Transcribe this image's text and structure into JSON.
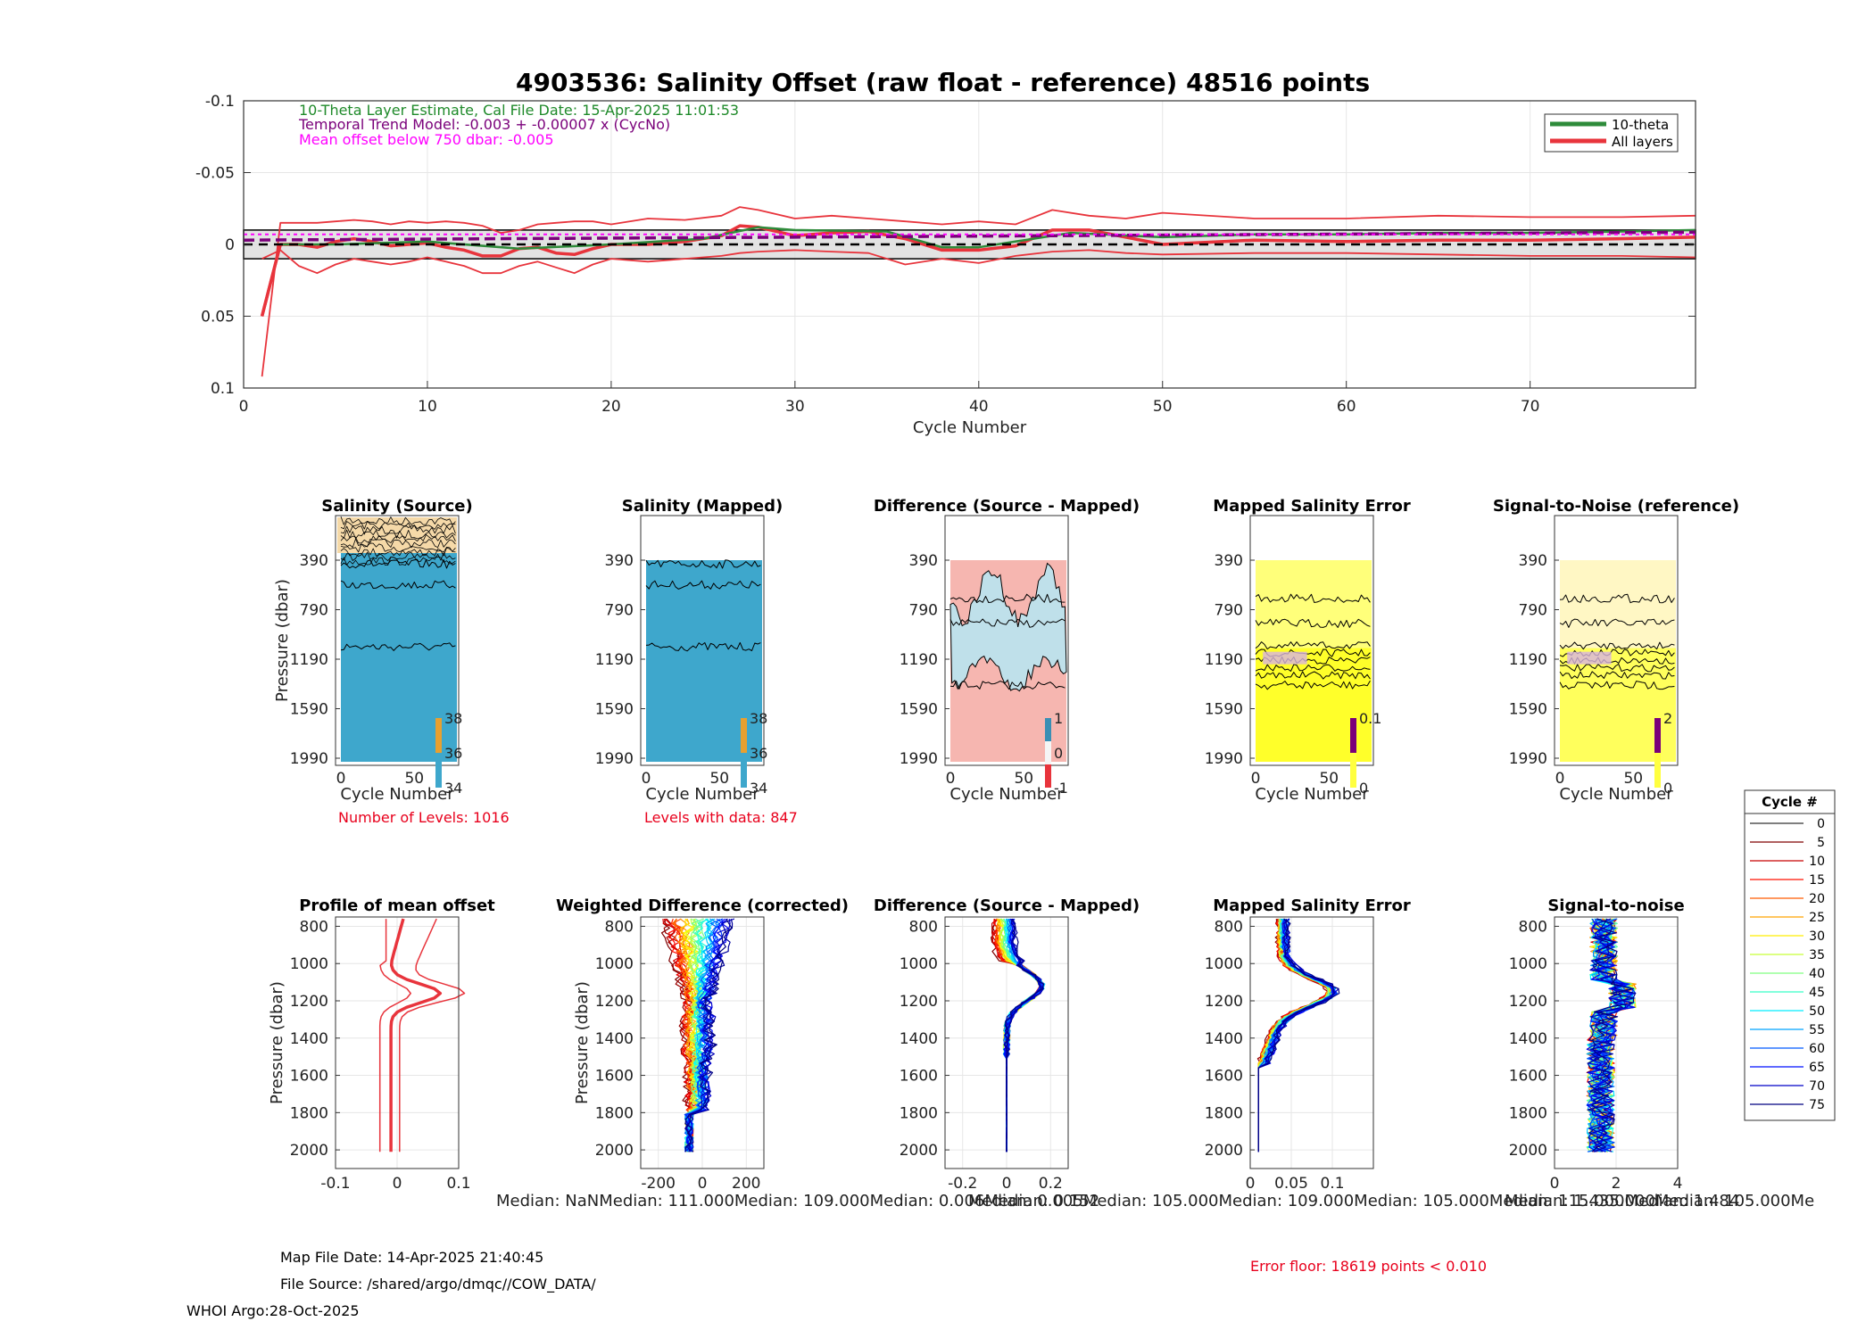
{
  "page": {
    "title": "4903536: Salinity Offset (raw float - reference)   48516 points",
    "cal_note": "10-Theta Layer Estimate, Cal File Date: 15-Apr-2025 11:01:53",
    "trend_note": "Temporal Trend Model: -0.003 + -0.00007 x (CycNo)",
    "mean_note": "Mean offset below 750 dbar: -0.005",
    "levels_note": "Number of Levels: 1016",
    "levels_data_note": "Levels with data: 847",
    "median_row": "Median:     NaNMedian: 111.000Median: 109.000Median: 0.006Median: 0.152",
    "median_row2": "Median: 0.005Median: 105.000Median: 109.000Median: 105.000Median: 115.000Median: 1.484",
    "median_row3": "Median: 1.435.000Median: 105.000Me",
    "map_file_date": "Map File Date: 14-Apr-2025 21:40:45",
    "file_source": "File Source: /shared/argo/dmqc//COW_DATA/",
    "error_floor": "Error floor: 18619 points < 0.010",
    "whoi": "WHOI Argo:28-Oct-2025"
  },
  "colors": {
    "tenTheta": "#2e8b3a",
    "allLayers": "#e8343c",
    "trend": "#7a007a",
    "mean": "#ff00ff",
    "salinityFill": "#3ea7cc",
    "diffPos": "#f6b6b0",
    "diffNeg": "#bfe0ea",
    "errorFill": "#ffff2a"
  },
  "chart_data": [
    {
      "id": "offset",
      "type": "line",
      "title": "4903536: Salinity Offset (raw float - reference)   48516 points",
      "xlabel": "Cycle Number",
      "ylabel": "",
      "xlim": [
        0,
        79
      ],
      "ylim": [
        -0.1,
        0.1
      ],
      "y_reversed": true,
      "xticks": [
        0,
        10,
        20,
        30,
        40,
        50,
        60,
        70
      ],
      "yticks": [
        -0.1,
        -0.05,
        0,
        0.05,
        0.1
      ],
      "ytick_labels": [
        "-0.1",
        "-0.05",
        "0",
        "0.05",
        "0.1"
      ],
      "legend": [
        "10-theta",
        "All layers"
      ],
      "legend_position": "top-right",
      "error_band": [
        -0.01,
        0.01
      ],
      "trend_line": {
        "intercept": -0.003,
        "slope": -7e-05
      },
      "mean_offset": -0.005,
      "series": [
        {
          "name": "All layers (mean)",
          "x": [
            1,
            2,
            3,
            4,
            5,
            6,
            7,
            8,
            9,
            10,
            11,
            12,
            13,
            14,
            15,
            16,
            17,
            18,
            19,
            20,
            22,
            24,
            26,
            27,
            28,
            30,
            32,
            34,
            36,
            38,
            40,
            42,
            44,
            46,
            48,
            50,
            55,
            60,
            65,
            70,
            75,
            79
          ],
          "y": [
            0.05,
            0.0,
            0.0,
            0.002,
            -0.002,
            -0.004,
            -0.002,
            0.001,
            0.0,
            -0.001,
            0.002,
            0.004,
            0.008,
            0.008,
            0.003,
            0.002,
            0.006,
            0.007,
            0.003,
            0.0,
            0.0,
            -0.002,
            -0.006,
            -0.013,
            -0.012,
            -0.006,
            -0.008,
            -0.009,
            -0.004,
            0.004,
            0.004,
            0.001,
            -0.01,
            -0.01,
            -0.005,
            0.0,
            -0.003,
            -0.002,
            -0.003,
            -0.003,
            -0.004,
            -0.005
          ]
        },
        {
          "name": "All layers (upper)",
          "x": [
            1,
            2,
            3,
            4,
            5,
            6,
            7,
            8,
            9,
            10,
            11,
            12,
            13,
            14,
            15,
            16,
            17,
            18,
            19,
            20,
            22,
            24,
            26,
            27,
            28,
            30,
            32,
            34,
            36,
            38,
            40,
            42,
            44,
            46,
            48,
            50,
            55,
            60,
            65,
            70,
            75,
            79
          ],
          "y": [
            0.092,
            -0.015,
            -0.015,
            -0.015,
            -0.016,
            -0.017,
            -0.016,
            -0.014,
            -0.016,
            -0.015,
            -0.016,
            -0.015,
            -0.013,
            -0.008,
            -0.01,
            -0.014,
            -0.015,
            -0.016,
            -0.016,
            -0.014,
            -0.018,
            -0.017,
            -0.02,
            -0.026,
            -0.024,
            -0.018,
            -0.02,
            -0.018,
            -0.016,
            -0.014,
            -0.016,
            -0.014,
            -0.024,
            -0.02,
            -0.018,
            -0.022,
            -0.018,
            -0.018,
            -0.02,
            -0.019,
            -0.019,
            -0.02
          ]
        },
        {
          "name": "All layers (lower)",
          "x": [
            1,
            2,
            3,
            4,
            5,
            6,
            7,
            8,
            9,
            10,
            11,
            12,
            13,
            14,
            15,
            16,
            17,
            18,
            19,
            20,
            22,
            24,
            26,
            27,
            28,
            30,
            32,
            34,
            36,
            38,
            40,
            42,
            44,
            46,
            48,
            50,
            55,
            60,
            65,
            70,
            75,
            79
          ],
          "y": [
            0.01,
            0.004,
            0.015,
            0.02,
            0.014,
            0.01,
            0.012,
            0.014,
            0.012,
            0.009,
            0.012,
            0.015,
            0.02,
            0.02,
            0.015,
            0.012,
            0.016,
            0.02,
            0.014,
            0.01,
            0.012,
            0.01,
            0.008,
            0.006,
            0.005,
            0.004,
            0.005,
            0.006,
            0.014,
            0.01,
            0.013,
            0.008,
            0.005,
            0.004,
            0.006,
            0.007,
            0.006,
            0.006,
            0.007,
            0.008,
            0.008,
            0.009
          ]
        },
        {
          "name": "10-theta",
          "x": [
            2,
            5,
            10,
            15,
            20,
            25,
            28,
            30,
            35,
            38,
            40,
            45,
            50,
            55,
            60,
            65,
            70,
            75,
            79
          ],
          "y": [
            0.0,
            0.0,
            -0.002,
            0.003,
            0.0,
            -0.004,
            -0.012,
            -0.01,
            -0.009,
            0.002,
            0.002,
            -0.008,
            -0.005,
            -0.007,
            -0.007,
            -0.008,
            -0.008,
            -0.009,
            -0.01
          ]
        }
      ]
    },
    {
      "id": "sal_source",
      "type": "heatmap",
      "title": "Salinity (Source)",
      "xlabel": "Cycle Number",
      "ylabel": "Pressure (dbar)",
      "yticks": [
        390,
        790,
        1190,
        1590,
        1990
      ],
      "xticks": [
        0,
        50
      ],
      "colorbar_ticks": [
        34,
        36,
        38
      ]
    },
    {
      "id": "sal_mapped",
      "type": "heatmap",
      "title": "Salinity (Mapped)",
      "xlabel": "Cycle Number",
      "yticks": [
        390,
        790,
        1190,
        1590,
        1990
      ],
      "xticks": [
        0,
        50
      ],
      "colorbar_ticks": [
        34,
        36,
        38
      ]
    },
    {
      "id": "diff_map",
      "type": "heatmap",
      "title": "Difference (Source - Mapped)",
      "xlabel": "Cycle Number",
      "yticks": [
        390,
        790,
        1190,
        1590,
        1990
      ],
      "xticks": [
        0,
        50
      ],
      "colorbar_ticks": [
        -1,
        0,
        1
      ]
    },
    {
      "id": "err_map",
      "type": "heatmap",
      "title": "Mapped Salinity Error",
      "xlabel": "Cycle Number",
      "yticks": [
        390,
        790,
        1190,
        1590,
        1990
      ],
      "xticks": [
        0,
        50
      ],
      "colorbar_ticks": [
        0,
        0.1
      ]
    },
    {
      "id": "snr_map",
      "type": "heatmap",
      "title": "Signal-to-Noise (reference)",
      "xlabel": "Cycle Number",
      "yticks": [
        390,
        790,
        1190,
        1590,
        1990
      ],
      "xticks": [
        0,
        50
      ],
      "colorbar_ticks": [
        0,
        2
      ]
    },
    {
      "id": "profile_mean",
      "type": "line",
      "title": "Profile of mean offset",
      "ylabel": "Pressure (dbar)",
      "xlim": [
        -0.1,
        0.1
      ],
      "xticks": [
        -0.1,
        0,
        0.1
      ],
      "xtick_labels": [
        "-0.1",
        "0",
        "0.1"
      ],
      "ylim": [
        750,
        2100
      ],
      "yticks": [
        800,
        1000,
        1200,
        1400,
        1600,
        1800,
        2000
      ]
    },
    {
      "id": "weighted_diff",
      "type": "line",
      "title": "Weighted Difference (corrected)",
      "ylabel": "Pressure (dbar)",
      "xlim": [
        -280,
        280
      ],
      "xticks": [
        -200,
        0,
        200
      ],
      "ylim": [
        750,
        2100
      ],
      "yticks": [
        800,
        1000,
        1200,
        1400,
        1600,
        1800,
        2000
      ]
    },
    {
      "id": "diff_profiles",
      "type": "line",
      "title": "Difference (Source - Mapped)",
      "xlim": [
        -0.28,
        0.28
      ],
      "xticks": [
        -0.2,
        0,
        0.2
      ],
      "ylim": [
        750,
        2100
      ],
      "yticks": [
        800,
        1000,
        1200,
        1400,
        1600,
        1800,
        2000
      ]
    },
    {
      "id": "err_profiles",
      "type": "line",
      "title": "Mapped Salinity Error",
      "xlim": [
        0,
        0.15
      ],
      "xticks": [
        0,
        0.05,
        0.1
      ],
      "ylim": [
        750,
        2100
      ],
      "yticks": [
        800,
        1000,
        1200,
        1400,
        1600,
        1800,
        2000
      ]
    },
    {
      "id": "snr_profiles",
      "type": "line",
      "title": "Signal-to-noise",
      "xlim": [
        0,
        4
      ],
      "xticks": [
        0,
        2,
        4
      ],
      "ylim": [
        750,
        2100
      ],
      "yticks": [
        800,
        1000,
        1200,
        1400,
        1600,
        1800,
        2000
      ]
    },
    {
      "id": "cycle_legend",
      "type": "table",
      "title": "Cycle #",
      "entries": [
        0,
        5,
        10,
        15,
        20,
        25,
        30,
        35,
        40,
        45,
        50,
        55,
        60,
        65,
        70,
        75
      ]
    }
  ]
}
